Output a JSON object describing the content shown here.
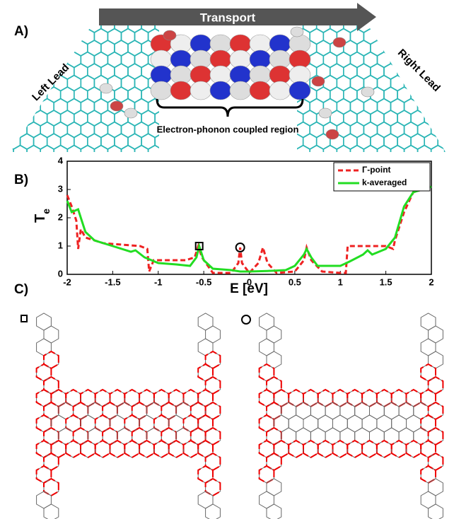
{
  "panel_a": {
    "label": "A)",
    "arrow_text": "Transport",
    "left_lead": "Left Lead",
    "right_lead": "Right Lead",
    "region": "Electron-phonon coupled region"
  },
  "panel_b": {
    "label": "B)"
  },
  "panel_c": {
    "label": "C)"
  },
  "chart_data": {
    "type": "line",
    "xlabel": "E [eV]",
    "ylabel": "T",
    "ylabel_sub": "e",
    "xlim": [
      -2,
      2
    ],
    "xticks": [
      -2,
      -1.5,
      -1,
      -0.5,
      0,
      0.5,
      1,
      1.5,
      2
    ],
    "ylim": [
      0,
      4
    ],
    "yticks": [
      0,
      1,
      2,
      3,
      4
    ],
    "legend": "top-right",
    "series": [
      {
        "name": "Γ-point",
        "color": "#ee2222",
        "dash": true,
        "x": [
          -2,
          -1.95,
          -1.9,
          -1.88,
          -1.85,
          -1.8,
          -1.6,
          -1.4,
          -1.2,
          -1.12,
          -1.1,
          -1.05,
          -1.0,
          -0.9,
          -0.7,
          -0.6,
          -0.56,
          -0.52,
          -0.4,
          -0.2,
          -0.12,
          -0.1,
          -0.08,
          0,
          0.1,
          0.15,
          0.2,
          0.3,
          0.5,
          0.6,
          0.63,
          0.68,
          0.8,
          1.0,
          1.06,
          1.08,
          1.3,
          1.5,
          1.58,
          1.6,
          1.7,
          1.8,
          2
        ],
        "values": [
          2.8,
          2.4,
          1.9,
          0.9,
          1.6,
          1.3,
          1.1,
          1.05,
          1.0,
          0.9,
          0.1,
          0.5,
          0.5,
          0.5,
          0.5,
          0.6,
          1.0,
          0.6,
          0.05,
          0.05,
          0.4,
          0.95,
          0.4,
          0.05,
          0.4,
          0.95,
          0.4,
          0.05,
          0.1,
          0.5,
          0.95,
          0.5,
          0.1,
          0.05,
          0.05,
          1.0,
          1.0,
          1.0,
          0.9,
          1.2,
          2.2,
          2.9,
          3.1
        ]
      },
      {
        "name": "k-averaged",
        "color": "#22dd22",
        "dash": false,
        "x": [
          -2,
          -1.95,
          -1.88,
          -1.85,
          -1.8,
          -1.7,
          -1.5,
          -1.3,
          -1.25,
          -1.15,
          -1.0,
          -0.8,
          -0.65,
          -0.58,
          -0.55,
          -0.5,
          -0.4,
          -0.2,
          -0.1,
          0,
          0.2,
          0.4,
          0.5,
          0.6,
          0.63,
          0.68,
          0.75,
          1.0,
          1.1,
          1.25,
          1.3,
          1.35,
          1.5,
          1.6,
          1.7,
          1.8,
          2
        ],
        "values": [
          2.6,
          2.2,
          2.3,
          2.0,
          1.5,
          1.2,
          1.0,
          0.8,
          0.85,
          0.6,
          0.4,
          0.35,
          0.3,
          0.6,
          1.0,
          0.5,
          0.2,
          0.15,
          0.1,
          0.1,
          0.12,
          0.15,
          0.3,
          0.7,
          0.9,
          0.6,
          0.3,
          0.3,
          0.45,
          0.7,
          0.85,
          0.7,
          0.9,
          1.3,
          2.4,
          2.9,
          3.1
        ]
      }
    ],
    "markers": [
      {
        "x": -0.55,
        "y": 1,
        "shape": "square"
      },
      {
        "x": -0.1,
        "y": 0.95,
        "shape": "circle"
      }
    ]
  }
}
